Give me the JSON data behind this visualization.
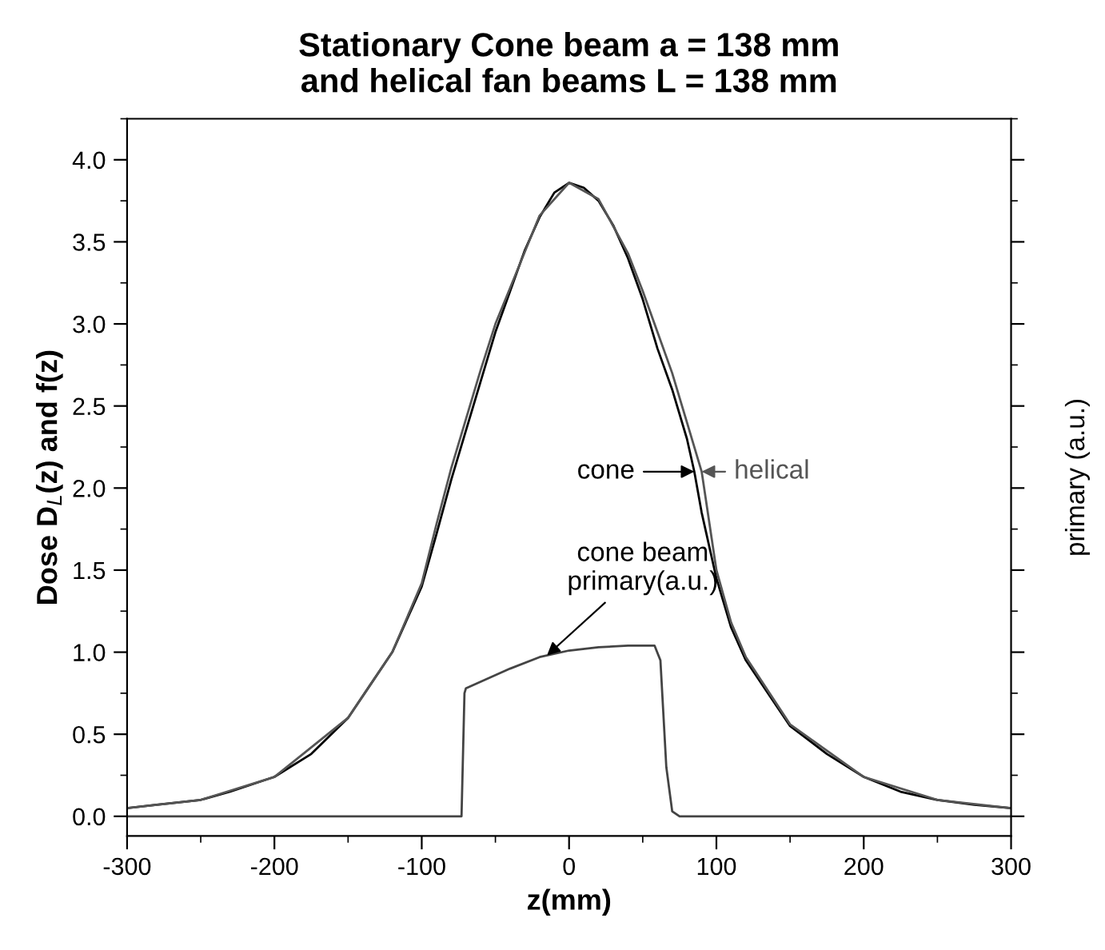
{
  "chart_data": {
    "type": "line",
    "title": "Stationary Cone beam a = 138 mm\nand helical fan beams L = 138 mm",
    "xlabel": "z(mm)",
    "ylabel": "Dose D$_{L}$(z) and f(z)",
    "y2label": "primary (a.u.)",
    "series": [
      {
        "color": "#000000",
        "x": [
          -300,
          -280,
          -250,
          -230,
          -200,
          -175,
          -150,
          -135,
          -120,
          -110,
          -100,
          -90,
          -80,
          -70,
          -60,
          -50,
          -40,
          -30,
          -20,
          -10,
          0,
          10,
          20,
          30,
          40,
          50,
          60,
          70,
          80,
          85,
          90,
          100,
          110,
          120,
          135,
          150,
          175,
          200,
          225,
          250,
          275,
          300
        ],
        "values": [
          0.05,
          0.07,
          0.1,
          0.15,
          0.24,
          0.38,
          0.6,
          0.8,
          1.0,
          1.2,
          1.4,
          1.72,
          2.05,
          2.35,
          2.65,
          2.95,
          3.2,
          3.45,
          3.65,
          3.8,
          3.86,
          3.83,
          3.75,
          3.6,
          3.4,
          3.15,
          2.85,
          2.6,
          2.3,
          2.1,
          1.85,
          1.45,
          1.15,
          0.95,
          0.75,
          0.55,
          0.38,
          0.24,
          0.15,
          0.1,
          0.07,
          0.05
        ]
      },
      {
        "color": "#555555",
        "x": [
          -300,
          -250,
          -200,
          -150,
          -120,
          -100,
          -90,
          -80,
          -70,
          -60,
          -50,
          -40,
          -20,
          0,
          20,
          40,
          50,
          60,
          70,
          80,
          90,
          100,
          110,
          120,
          150,
          200,
          250,
          300
        ],
        "values": [
          0.05,
          0.1,
          0.24,
          0.6,
          1.0,
          1.42,
          1.78,
          2.12,
          2.42,
          2.72,
          3.0,
          3.22,
          3.66,
          3.86,
          3.76,
          3.43,
          3.2,
          2.95,
          2.7,
          2.4,
          2.1,
          1.5,
          1.18,
          0.97,
          0.56,
          0.24,
          0.1,
          0.05
        ]
      },
      {
        "color": "#444444",
        "x": [
          -300,
          -73,
          -71,
          -70,
          -40,
          -20,
          0,
          20,
          40,
          58,
          62,
          66,
          70,
          75,
          300
        ],
        "values": [
          0,
          0,
          0.75,
          0.78,
          0.9,
          0.97,
          1.01,
          1.03,
          1.04,
          1.04,
          0.95,
          0.3,
          0.03,
          0,
          0
        ]
      }
    ],
    "annotations": [
      {
        "text": "cone",
        "x": 85,
        "y": 2.1
      },
      {
        "text": "helical",
        "x": 90,
        "y": 2.1
      },
      {
        "text": "cone beam\nprimary(a.u.)",
        "x": -15,
        "y": 0.98
      }
    ],
    "xlim": [
      -300,
      300
    ],
    "xticks": [
      -300,
      -200,
      -100,
      0,
      100,
      200,
      300
    ],
    "ylim": [
      -0.12,
      4.25
    ],
    "yticks": [
      {
        "value": 0,
        "label": "0.0"
      },
      {
        "value": 0.5,
        "label": "0.5"
      },
      {
        "value": 1,
        "label": "1.0"
      },
      {
        "value": 1.5,
        "label": "1.5"
      },
      {
        "value": 2,
        "label": "2.0"
      },
      {
        "value": 2.5,
        "label": "2.5"
      },
      {
        "value": 3,
        "label": "3.0"
      },
      {
        "value": 3.5,
        "label": "3.5"
      },
      {
        "value": 4,
        "label": "4.0"
      }
    ],
    "grid": false,
    "legend": false,
    "marker": "none",
    "line_style": "solid"
  }
}
